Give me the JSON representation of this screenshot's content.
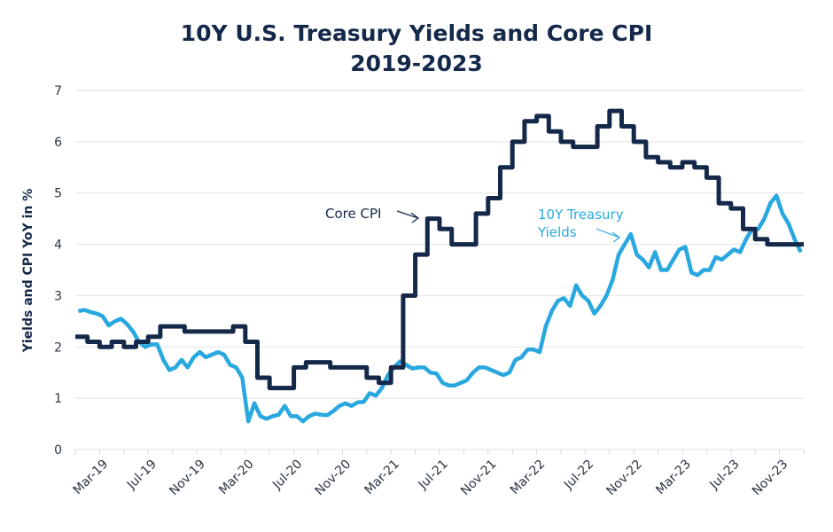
{
  "chart_data": {
    "type": "line",
    "title": "10Y U.S. Treasury Yields and Core CPI",
    "subtitle": "2019-2023",
    "ylabel": "Yields and CPI YoY in %",
    "xlabel": "",
    "ylim": [
      0,
      7
    ],
    "yticks": [
      "0",
      "1",
      "2",
      "3",
      "4",
      "5",
      "6",
      "7"
    ],
    "xlim": [
      "2019-01",
      "2024-01"
    ],
    "xtick_labels": [
      {
        "date": "2019-03",
        "label": "Mar-19"
      },
      {
        "date": "2019-07",
        "label": "Jul-19"
      },
      {
        "date": "2019-11",
        "label": "Nov-19"
      },
      {
        "date": "2020-03",
        "label": "Mar-20"
      },
      {
        "date": "2020-07",
        "label": "Jul-20"
      },
      {
        "date": "2020-11",
        "label": "Nov-20"
      },
      {
        "date": "2021-03",
        "label": "Mar-21"
      },
      {
        "date": "2021-07",
        "label": "Jul-21"
      },
      {
        "date": "2021-11",
        "label": "Nov-21"
      },
      {
        "date": "2022-03",
        "label": "Mar-22"
      },
      {
        "date": "2022-07",
        "label": "Jul-22"
      },
      {
        "date": "2022-11",
        "label": "Nov-22"
      },
      {
        "date": "2023-03",
        "label": "Mar-23"
      },
      {
        "date": "2023-07",
        "label": "Jul-23"
      },
      {
        "date": "2023-11",
        "label": "Nov-23"
      }
    ],
    "grid": true,
    "series": [
      {
        "name": "Core CPI",
        "color": "#14294a",
        "style": "step",
        "start": "2019-01",
        "frequency": "monthly",
        "values": [
          2.2,
          2.1,
          2.0,
          2.1,
          2.0,
          2.1,
          2.2,
          2.4,
          2.4,
          2.3,
          2.3,
          2.3,
          2.3,
          2.4,
          2.1,
          1.4,
          1.2,
          1.2,
          1.6,
          1.7,
          1.7,
          1.6,
          1.6,
          1.6,
          1.4,
          1.3,
          1.6,
          3.0,
          3.8,
          4.5,
          4.3,
          4.0,
          4.0,
          4.6,
          4.9,
          5.5,
          6.0,
          6.4,
          6.5,
          6.2,
          6.0,
          5.9,
          5.9,
          6.3,
          6.6,
          6.3,
          6.0,
          5.7,
          5.6,
          5.5,
          5.6,
          5.5,
          5.3,
          4.8,
          4.7,
          4.3,
          4.1,
          4.0,
          4.0,
          4.0
        ]
      },
      {
        "name": "10Y Treasury Yields",
        "color": "#29a8e0",
        "style": "line",
        "start": "2019-01",
        "frequency": "semi-monthly",
        "values": [
          2.7,
          2.72,
          2.68,
          2.65,
          2.6,
          2.42,
          2.5,
          2.55,
          2.45,
          2.3,
          2.1,
          2.0,
          2.05,
          2.05,
          1.75,
          1.55,
          1.6,
          1.75,
          1.6,
          1.8,
          1.9,
          1.8,
          1.85,
          1.9,
          1.85,
          1.65,
          1.6,
          1.4,
          0.55,
          0.9,
          0.65,
          0.6,
          0.65,
          0.68,
          0.85,
          0.65,
          0.65,
          0.55,
          0.65,
          0.7,
          0.68,
          0.67,
          0.75,
          0.85,
          0.9,
          0.85,
          0.92,
          0.93,
          1.1,
          1.05,
          1.2,
          1.45,
          1.6,
          1.72,
          1.65,
          1.58,
          1.6,
          1.6,
          1.5,
          1.48,
          1.3,
          1.25,
          1.25,
          1.3,
          1.35,
          1.5,
          1.6,
          1.6,
          1.55,
          1.5,
          1.45,
          1.5,
          1.75,
          1.8,
          1.95,
          1.95,
          1.9,
          2.4,
          2.7,
          2.9,
          2.95,
          2.8,
          3.2,
          3.0,
          2.9,
          2.65,
          2.8,
          3.0,
          3.3,
          3.8,
          4.0,
          4.2,
          3.8,
          3.7,
          3.55,
          3.85,
          3.5,
          3.5,
          3.7,
          3.9,
          3.95,
          3.45,
          3.4,
          3.5,
          3.5,
          3.75,
          3.7,
          3.8,
          3.9,
          3.85,
          4.1,
          4.3,
          4.3,
          4.5,
          4.8,
          4.95,
          4.6,
          4.4,
          4.1,
          3.85
        ]
      }
    ],
    "annotations": [
      {
        "text": "Core CPI",
        "series": "Core CPI"
      },
      {
        "text_lines": [
          "10Y Treasury",
          "Yields"
        ],
        "series": "10Y Treasury Yields"
      }
    ]
  }
}
